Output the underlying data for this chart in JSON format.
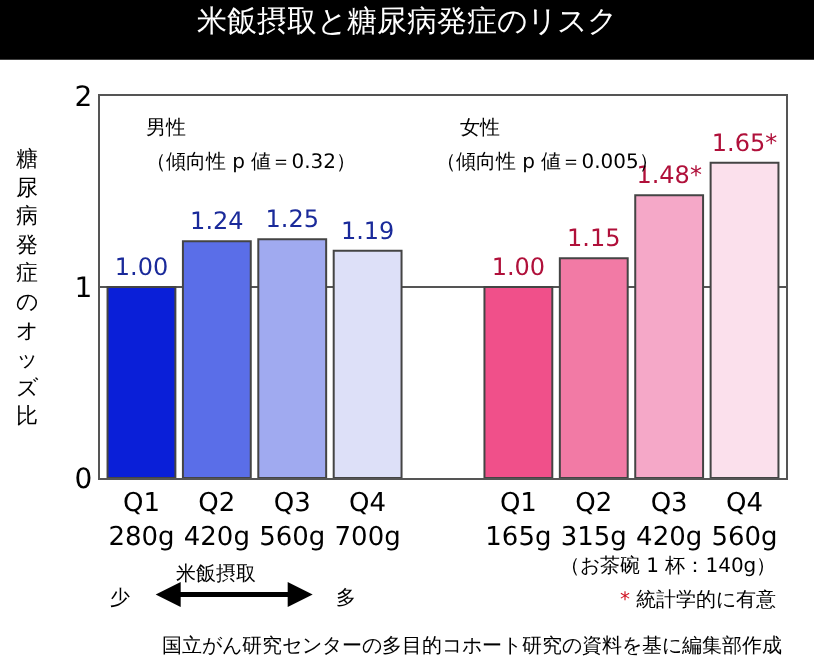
{
  "chart_data": {
    "type": "bar",
    "title": "米飯摂取と糖尿病発症のリスク",
    "ylabel": "糖尿病発症のオッズ比",
    "categories": [
      "Q1\n280g",
      "Q2\n420g",
      "Q3\n560g",
      "Q4\n700g",
      null,
      "Q1\n165g",
      "Q2\n315g",
      "Q3\n420g",
      "Q4\n560g"
    ],
    "values": [
      1.0,
      1.24,
      1.25,
      1.19,
      null,
      1.0,
      1.15,
      1.48,
      1.65
    ],
    "colors": [
      "#0a1fd8",
      "#5a6ee8",
      "#a0aaf0",
      "#dde0f8",
      "#ffffff",
      "#f0508a",
      "#f27aa5",
      "#f5a8c8",
      "#fbe0ec"
    ],
    "value_labels": [
      "1.00",
      "1.24",
      "1.25",
      "1.19",
      null,
      "1.00",
      "1.15",
      "1.48*",
      "1.65*"
    ],
    "ylim": [
      0,
      2
    ],
    "yticks": [
      0,
      1,
      2
    ],
    "grid": "y",
    "legend": false,
    "annotations": [
      "男性",
      "（傾向性 p 値＝0.32）",
      "女性",
      "（傾向性 p 値＝0.005）",
      "（お茶碗 1 杯：140g）",
      "* 統計学的に有意",
      "米飯摂取",
      "少",
      "多",
      "国立がん研究センターの多目的コホート研究の資料を基に編集部作成"
    ]
  }
}
